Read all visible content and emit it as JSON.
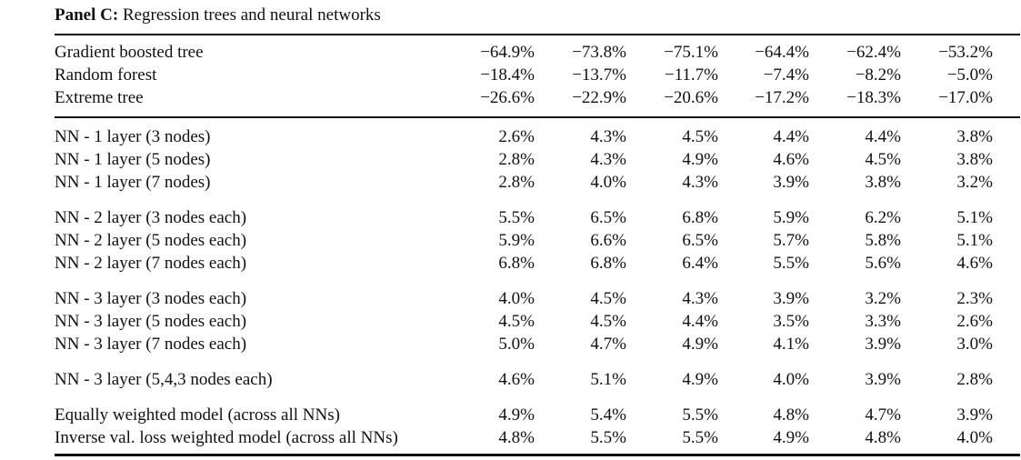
{
  "panel": {
    "bold_label": "Panel C:",
    "title_text": " Regression trees and neural networks"
  },
  "table": {
    "rows": [
      {
        "label": "Gradient boosted tree",
        "values": [
          "−64.9%",
          "−73.8%",
          "−75.1%",
          "−64.4%",
          "−62.4%",
          "−53.2%"
        ]
      },
      {
        "label": "Random forest",
        "values": [
          "−18.4%",
          "−13.7%",
          "−11.7%",
          "−7.4%",
          "−8.2%",
          "−5.0%"
        ]
      },
      {
        "label": "Extreme tree",
        "values": [
          "−26.6%",
          "−22.9%",
          "−20.6%",
          "−17.2%",
          "−18.3%",
          "−17.0%"
        ]
      },
      {
        "label": "NN - 1 layer (3 nodes)",
        "values": [
          "2.6%",
          "4.3%",
          "4.5%",
          "4.4%",
          "4.4%",
          "3.8%"
        ]
      },
      {
        "label": "NN - 1 layer (5 nodes)",
        "values": [
          "2.8%",
          "4.3%",
          "4.9%",
          "4.6%",
          "4.5%",
          "3.8%"
        ]
      },
      {
        "label": "NN - 1 layer (7 nodes)",
        "values": [
          "2.8%",
          "4.0%",
          "4.3%",
          "3.9%",
          "3.8%",
          "3.2%"
        ]
      },
      {
        "label": "NN - 2 layer (3 nodes each)",
        "values": [
          "5.5%",
          "6.5%",
          "6.8%",
          "5.9%",
          "6.2%",
          "5.1%"
        ]
      },
      {
        "label": "NN - 2 layer (5 nodes each)",
        "values": [
          "5.9%",
          "6.6%",
          "6.5%",
          "5.7%",
          "5.8%",
          "5.1%"
        ]
      },
      {
        "label": "NN - 2 layer (7 nodes each)",
        "values": [
          "6.8%",
          "6.8%",
          "6.4%",
          "5.5%",
          "5.6%",
          "4.6%"
        ]
      },
      {
        "label": "NN - 3 layer (3 nodes each)",
        "values": [
          "4.0%",
          "4.5%",
          "4.3%",
          "3.9%",
          "3.2%",
          "2.3%"
        ]
      },
      {
        "label": "NN - 3 layer (5 nodes each)",
        "values": [
          "4.5%",
          "4.5%",
          "4.4%",
          "3.5%",
          "3.3%",
          "2.6%"
        ]
      },
      {
        "label": "NN - 3 layer (7 nodes each)",
        "values": [
          "5.0%",
          "4.7%",
          "4.9%",
          "4.1%",
          "3.9%",
          "3.0%"
        ]
      },
      {
        "label": "NN - 3 layer (5,4,3 nodes each)",
        "values": [
          "4.6%",
          "5.1%",
          "4.9%",
          "4.0%",
          "3.9%",
          "2.8%"
        ]
      },
      {
        "label": "Equally weighted model (across all NNs)",
        "values": [
          "4.9%",
          "5.4%",
          "5.5%",
          "4.8%",
          "4.7%",
          "3.9%"
        ]
      },
      {
        "label": "Inverse val. loss weighted model (across all NNs)",
        "values": [
          "4.8%",
          "5.5%",
          "5.5%",
          "4.9%",
          "4.8%",
          "4.0%"
        ]
      }
    ]
  }
}
